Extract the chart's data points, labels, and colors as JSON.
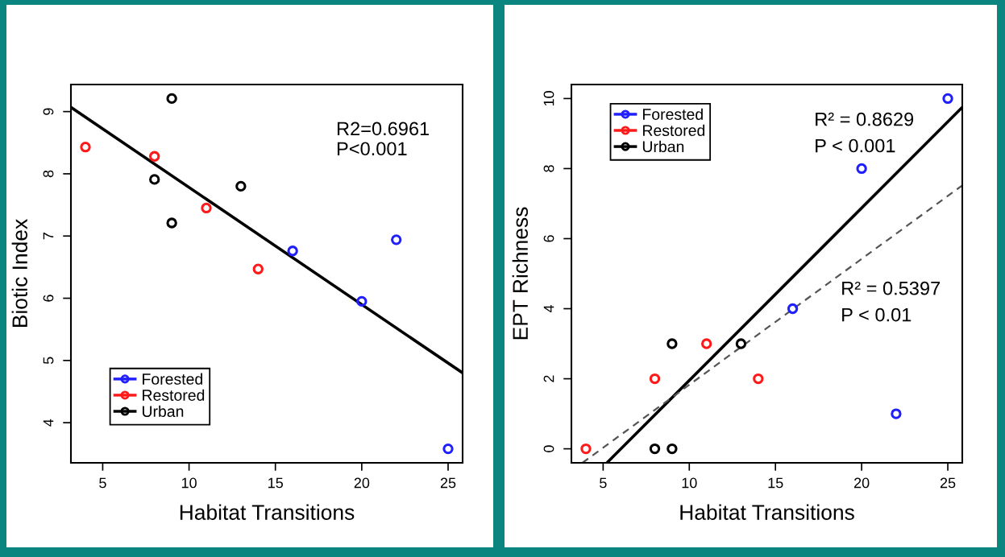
{
  "chart_data": [
    {
      "type": "scatter",
      "xlabel": "Habitat Transitions",
      "ylabel": "Biotic Index",
      "xlim": [
        3.16,
        25.84
      ],
      "ylim": [
        3.355,
        9.435
      ],
      "xticks": [
        5,
        10,
        15,
        20,
        25
      ],
      "yticks": [
        4,
        5,
        6,
        7,
        8,
        9
      ],
      "grid": false,
      "legend": "bottom left",
      "annotations": [
        "R2=0.6961",
        "P<0.001"
      ],
      "series": [
        {
          "name": "Forested",
          "color": "#2020ff",
          "marker": "circle",
          "x": [
            16,
            20,
            22,
            25
          ],
          "values": [
            6.76,
            5.95,
            6.94,
            3.58
          ]
        },
        {
          "name": "Restored",
          "color": "#ff1a1a",
          "marker": "circle",
          "x": [
            4,
            8,
            11,
            14
          ],
          "values": [
            8.43,
            8.28,
            7.45,
            6.47
          ]
        },
        {
          "name": "Urban",
          "color": "#000000",
          "marker": "circle",
          "x": [
            8,
            9,
            9,
            13
          ],
          "values": [
            7.91,
            9.21,
            7.21,
            7.8
          ]
        },
        {
          "type": "line",
          "color": "#000000",
          "line_style": "solid",
          "marker": "none",
          "x": [
            3.16,
            25.84
          ],
          "values": [
            9.07,
            4.8
          ]
        }
      ]
    },
    {
      "type": "scatter",
      "xlabel": "Habitat Transitions",
      "ylabel": "EPT Richness",
      "xlim": [
        3.16,
        25.84
      ],
      "ylim": [
        -0.4,
        10.4
      ],
      "xticks": [
        5,
        10,
        15,
        20,
        25
      ],
      "yticks": [
        0,
        2,
        4,
        6,
        8,
        10
      ],
      "grid": false,
      "legend": "top left",
      "annotations": [
        "R² = 0.8629",
        "P < 0.001",
        "R² = 0.5397",
        "P < 0.01"
      ],
      "series": [
        {
          "name": "Forested",
          "color": "#2020ff",
          "marker": "circle",
          "x": [
            16,
            20,
            22,
            25
          ],
          "values": [
            4,
            8,
            1,
            10
          ]
        },
        {
          "name": "Restored",
          "color": "#ff1a1a",
          "marker": "circle",
          "x": [
            4,
            8,
            11,
            14
          ],
          "values": [
            0,
            2,
            3,
            2
          ]
        },
        {
          "name": "Urban",
          "color": "#000000",
          "marker": "circle",
          "x": [
            8,
            9,
            9,
            13
          ],
          "values": [
            0,
            0,
            3,
            3
          ]
        },
        {
          "type": "line",
          "color": "#000000",
          "line_style": "solid",
          "marker": "none",
          "x": [
            5.22,
            25.84
          ],
          "values": [
            -0.4,
            9.75
          ]
        },
        {
          "type": "line",
          "color": "#555555",
          "line_style": "dashed",
          "marker": "none",
          "x": [
            3.8,
            25.84
          ],
          "values": [
            -0.4,
            7.52
          ]
        }
      ]
    }
  ]
}
